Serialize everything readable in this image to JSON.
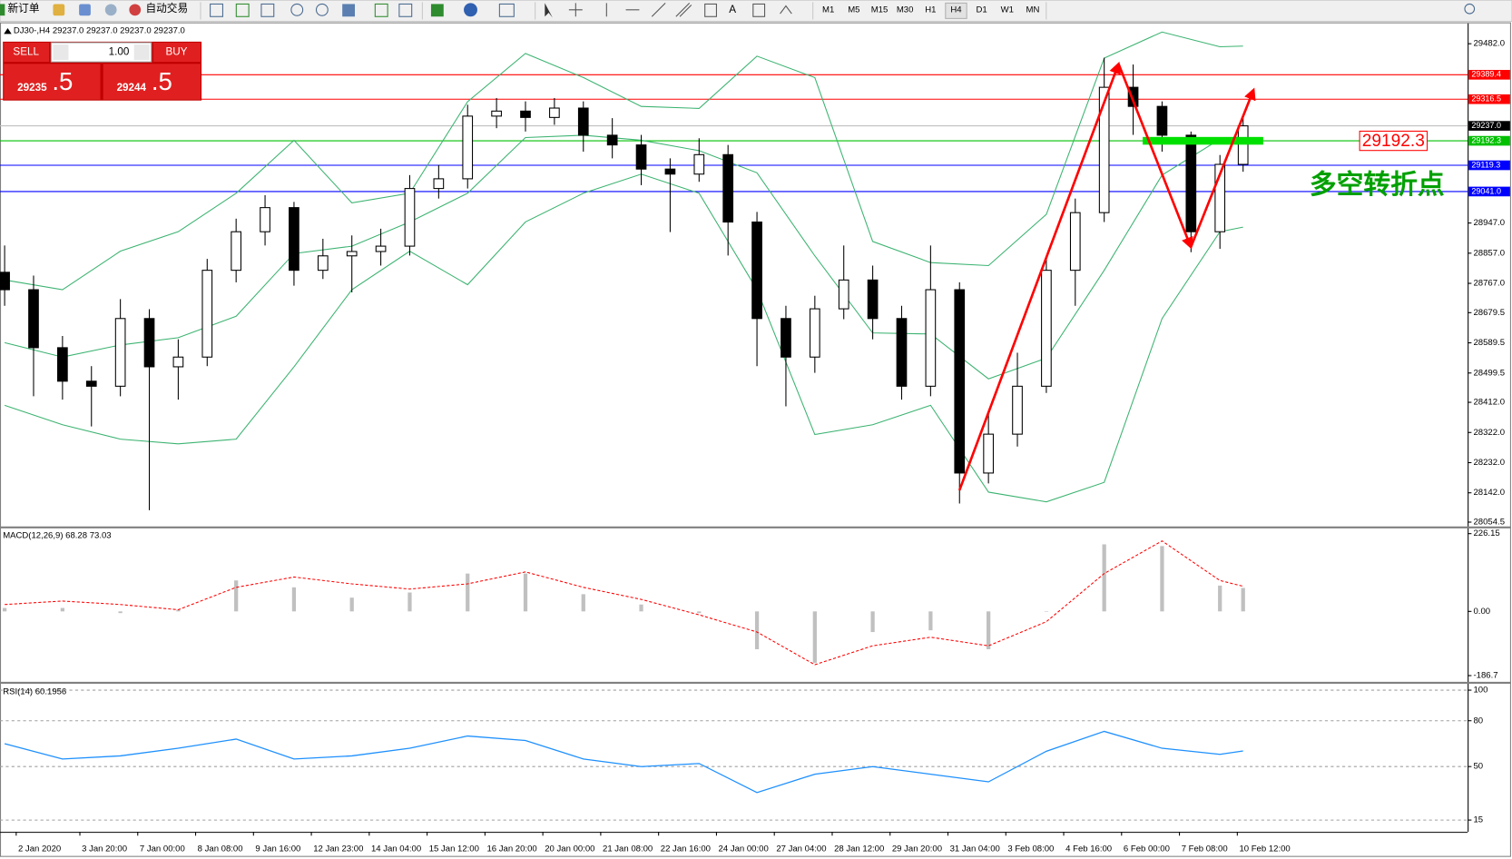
{
  "toolbar": {
    "new_order": "新订单",
    "auto_trading": "自动交易",
    "timeframes": [
      "M1",
      "M5",
      "M15",
      "M30",
      "H1",
      "H4",
      "D1",
      "W1",
      "MN"
    ],
    "selected": "H4"
  },
  "trade_panel": {
    "sell": "SELL",
    "buy": "BUY",
    "volume": "1.00",
    "bid_main": "29235",
    "bid_pips": ".5",
    "ask_main": "29244",
    "ask_pips": ".5"
  },
  "chart_data": [
    {
      "type": "candlestick",
      "title": "DJ30-,H4  29237.0 29237.0 29237.0 29237.0",
      "x": [
        0,
        5,
        10,
        15,
        20,
        25,
        30,
        35,
        40,
        45,
        50,
        55,
        60,
        65,
        70,
        75,
        80,
        85,
        90,
        95,
        100,
        105,
        110,
        115,
        120,
        125,
        130,
        135,
        140,
        145,
        150,
        155,
        160,
        165,
        170,
        175,
        180,
        185,
        190,
        195,
        200,
        205,
        210,
        214
      ],
      "open": [
        28800,
        28748,
        28575,
        28475,
        28460,
        28662,
        28518,
        28547,
        28806,
        28921,
        28993,
        28806,
        28849,
        28862,
        28878,
        29050,
        29079,
        29266,
        29281,
        29262,
        29290,
        29209,
        29180,
        29108,
        29093,
        29151,
        28950,
        28662,
        28547,
        28691,
        28777,
        28662,
        28460,
        28748,
        28201,
        28317,
        28460,
        28806,
        28978,
        29352,
        29295,
        29209,
        28921,
        29122
      ],
      "high": [
        28880,
        28790,
        28610,
        28520,
        28720,
        28690,
        28600,
        28840,
        28960,
        29030,
        29010,
        28900,
        28910,
        28930,
        29090,
        29120,
        29300,
        29320,
        29310,
        29320,
        29310,
        29260,
        29210,
        29140,
        29200,
        29180,
        28980,
        28700,
        28730,
        28880,
        28820,
        28700,
        28880,
        28770,
        28380,
        28560,
        28840,
        29020,
        29440,
        29420,
        29310,
        29220,
        29150,
        29260
      ],
      "low": [
        28700,
        28430,
        28420,
        28340,
        28430,
        28090,
        28420,
        28520,
        28770,
        28880,
        28760,
        28780,
        28740,
        28820,
        28850,
        29020,
        29050,
        29230,
        29220,
        29240,
        29160,
        29140,
        29060,
        28920,
        29070,
        28850,
        28520,
        28400,
        28500,
        28660,
        28600,
        28420,
        28430,
        28110,
        28170,
        28280,
        28440,
        28700,
        28950,
        29210,
        29160,
        28860,
        28870,
        29100
      ],
      "close": [
        28748,
        28575,
        28475,
        28460,
        28662,
        28518,
        28547,
        28806,
        28921,
        28993,
        28806,
        28849,
        28862,
        28878,
        29050,
        29079,
        29266,
        29281,
        29262,
        29290,
        29209,
        29180,
        29108,
        29093,
        29151,
        28950,
        28662,
        28547,
        28691,
        28777,
        28662,
        28460,
        28748,
        28201,
        28317,
        28460,
        28806,
        28978,
        29352,
        29295,
        29209,
        28921,
        29122,
        29237
      ],
      "up_color": "#ffffff",
      "down_color": "#000000",
      "series": [
        {
          "color": "#3cb371",
          "x": [
            0,
            10,
            20,
            30,
            40,
            50,
            60,
            70,
            80,
            90,
            100,
            110,
            120,
            130,
            140,
            150,
            160,
            170,
            180,
            190,
            200,
            210,
            214
          ],
          "values": [
            28777,
            28748,
            28863,
            28921,
            29036,
            29194,
            29007,
            29036,
            29309,
            29453,
            29381,
            29295,
            29289,
            29445,
            29381,
            28892,
            28829,
            28820,
            28973,
            29439,
            29517,
            29473,
            29475
          ]
        },
        {
          "color": "#3cb371",
          "x": [
            0,
            10,
            20,
            30,
            40,
            50,
            60,
            70,
            80,
            90,
            100,
            110,
            120,
            130,
            140,
            150,
            160,
            170,
            180,
            190,
            200,
            210,
            214
          ],
          "values": [
            28590,
            28547,
            28583,
            28605,
            28669,
            28856,
            28878,
            28950,
            29036,
            29202,
            29209,
            29194,
            29163,
            29097,
            28849,
            28619,
            28616,
            28482,
            28544,
            28806,
            29090,
            29197,
            29205
          ]
        },
        {
          "color": "#3cb371",
          "x": [
            0,
            10,
            20,
            30,
            40,
            50,
            60,
            70,
            80,
            90,
            100,
            110,
            120,
            130,
            140,
            150,
            160,
            170,
            180,
            190,
            200,
            210,
            214
          ],
          "values": [
            28403,
            28345,
            28302,
            28288,
            28302,
            28518,
            28748,
            28863,
            28763,
            28950,
            29036,
            29093,
            29036,
            28748,
            28316,
            28345,
            28403,
            28144,
            28115,
            28173,
            28662,
            28921,
            28935
          ]
        }
      ],
      "levels": [
        {
          "value": 29389.4,
          "label": "29389.4",
          "color": "#ff0000",
          "line_color": "#ff0000"
        },
        {
          "value": 29316.5,
          "label": "29316.5",
          "color": "#ff0000",
          "line_color": "#ff0000"
        },
        {
          "value": 29237.0,
          "label": "29237.0",
          "color": "#000000",
          "line_color": "#c0c0c0"
        },
        {
          "value": 29192.3,
          "label": "29192.3",
          "color": "#00c000",
          "line_color": "#00c000"
        },
        {
          "value": 29119.3,
          "label": "29119.3",
          "color": "#0000ff",
          "line_color": "#0000ff"
        },
        {
          "value": 29041.0,
          "label": "29041.0",
          "color": "#0000ff",
          "line_color": "#0000ff"
        }
      ],
      "annotations": [
        {
          "value": 29192.3,
          "label": "29192.3",
          "color": "#ff0000",
          "bar_color": "#00e000"
        },
        {
          "label": "多空转折点",
          "color": "#00a000"
        }
      ],
      "xlim": [
        -0.8,
        252.8
      ],
      "ylim": [
        28043,
        29540
      ],
      "yticks": [
        {
          "value": 29482,
          "label": "29482.0"
        },
        {
          "value": 28947,
          "label": "28947.0"
        },
        {
          "value": 28857,
          "label": "28857.0"
        },
        {
          "value": 28767,
          "label": "28767.0"
        },
        {
          "value": 28679.5,
          "label": "28679.5"
        },
        {
          "value": 28589.5,
          "label": "28589.5"
        },
        {
          "value": 28499.5,
          "label": "28499.5"
        },
        {
          "value": 28412,
          "label": "28412.0"
        },
        {
          "value": 28322,
          "label": "28322.0"
        },
        {
          "value": 28232,
          "label": "28232.0"
        },
        {
          "value": 28142,
          "label": "28142.0"
        },
        {
          "value": 28054.5,
          "label": "28054.5"
        }
      ]
    },
    {
      "type": "macd",
      "title": "MACD(12,26,9) 68.28 73.03",
      "x": [
        0,
        10,
        20,
        30,
        40,
        50,
        60,
        70,
        80,
        90,
        100,
        110,
        120,
        130,
        140,
        150,
        160,
        170,
        180,
        190,
        200,
        210,
        214
      ],
      "series": [
        {
          "type": "bar",
          "color": "#c0c0c0",
          "values": [
            10,
            10,
            -5,
            5,
            90,
            70,
            40,
            55,
            110,
            110,
            50,
            20,
            -5,
            -110,
            -150,
            -60,
            -55,
            -110,
            0,
            195,
            190,
            75,
            68.28
          ]
        },
        {
          "type": "line",
          "color": "#ff0000",
          "values": [
            20,
            30,
            20,
            5,
            70,
            100,
            80,
            65,
            80,
            115,
            70,
            35,
            -10,
            -60,
            -155,
            -100,
            -75,
            -100,
            -30,
            110,
            205,
            90,
            73.03
          ]
        }
      ],
      "xlim": [
        -0.8,
        252.8
      ],
      "ylim": [
        -200.5,
        240
      ],
      "yticks": [
        {
          "value": 226.15,
          "label": "226.15"
        },
        {
          "value": 0,
          "label": "0.00"
        },
        {
          "value": -186.7,
          "label": "-186.7"
        }
      ]
    },
    {
      "type": "line",
      "title": "RSI(14) 60.1956",
      "color": "#1e90ff",
      "x": [
        0,
        10,
        20,
        30,
        40,
        50,
        60,
        70,
        80,
        90,
        100,
        110,
        120,
        130,
        140,
        150,
        160,
        170,
        180,
        190,
        200,
        210,
        214
      ],
      "values": [
        65,
        55,
        57,
        62,
        68,
        55,
        57,
        62,
        70,
        67,
        55,
        50,
        52,
        33,
        45,
        50,
        45,
        40,
        60,
        73,
        62,
        58,
        60.1956
      ],
      "xlim": [
        -0.8,
        252.8
      ],
      "ylim": [
        7.3,
        103.9
      ],
      "yticks": [
        100,
        80,
        50,
        15
      ],
      "grid": true,
      "xticks": [
        {
          "value": 2,
          "label": "2 Jan 2020"
        },
        {
          "value": 13,
          "label": "3 Jan 20:00"
        },
        {
          "value": 23,
          "label": "7 Jan 00:00"
        },
        {
          "value": 33,
          "label": "8 Jan 08:00"
        },
        {
          "value": 43,
          "label": "9 Jan 16:00"
        },
        {
          "value": 53,
          "label": "12 Jan 23:00"
        },
        {
          "value": 63,
          "label": "14 Jan 04:00"
        },
        {
          "value": 73,
          "label": "15 Jan 12:00"
        },
        {
          "value": 83,
          "label": "16 Jan 20:00"
        },
        {
          "value": 93,
          "label": "20 Jan 00:00"
        },
        {
          "value": 103,
          "label": "21 Jan 08:00"
        },
        {
          "value": 113,
          "label": "22 Jan 16:00"
        },
        {
          "value": 123,
          "label": "24 Jan 00:00"
        },
        {
          "value": 133,
          "label": "27 Jan 04:00"
        },
        {
          "value": 143,
          "label": "28 Jan 12:00"
        },
        {
          "value": 153,
          "label": "29 Jan 20:00"
        },
        {
          "value": 163,
          "label": "31 Jan 04:00"
        },
        {
          "value": 173,
          "label": "3 Feb 08:00"
        },
        {
          "value": 183,
          "label": "4 Feb 16:00"
        },
        {
          "value": 193,
          "label": "6 Feb 00:00"
        },
        {
          "value": 203,
          "label": "7 Feb 08:00"
        },
        {
          "value": 213,
          "label": "10 Feb 12:00"
        }
      ]
    }
  ]
}
